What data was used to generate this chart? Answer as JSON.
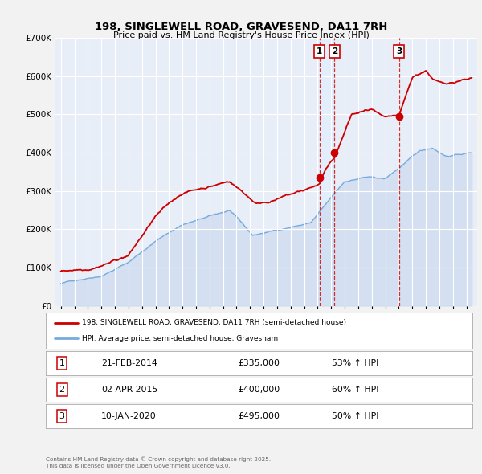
{
  "title": "198, SINGLEWELL ROAD, GRAVESEND, DA11 7RH",
  "subtitle": "Price paid vs. HM Land Registry's House Price Index (HPI)",
  "ylim": [
    0,
    700000
  ],
  "yticks": [
    0,
    100000,
    200000,
    300000,
    400000,
    500000,
    600000,
    700000
  ],
  "ytick_labels": [
    "£0",
    "£100K",
    "£200K",
    "£300K",
    "£400K",
    "£500K",
    "£600K",
    "£700K"
  ],
  "xlim_start": 1994.6,
  "xlim_end": 2025.8,
  "bg_color": "#e8eef8",
  "fig_color": "#f0f0f0",
  "grid_color": "#ffffff",
  "sale_color": "#cc0000",
  "hpi_color": "#77aadd",
  "hpi_fill_color": "#c8d8ee",
  "sale_label": "198, SINGLEWELL ROAD, GRAVESEND, DA11 7RH (semi-detached house)",
  "hpi_label": "HPI: Average price, semi-detached house, Gravesham",
  "transactions": [
    {
      "num": 1,
      "date": "21-FEB-2014",
      "price": 335000,
      "hpi_pct": "53%",
      "year": 2014.13
    },
    {
      "num": 2,
      "date": "02-APR-2015",
      "price": 400000,
      "hpi_pct": "60%",
      "year": 2015.25
    },
    {
      "num": 3,
      "date": "10-JAN-2020",
      "price": 495000,
      "hpi_pct": "50%",
      "year": 2020.03
    }
  ],
  "footnote1": "Contains HM Land Registry data © Crown copyright and database right 2025.",
  "footnote2": "This data is licensed under the Open Government Licence v3.0."
}
